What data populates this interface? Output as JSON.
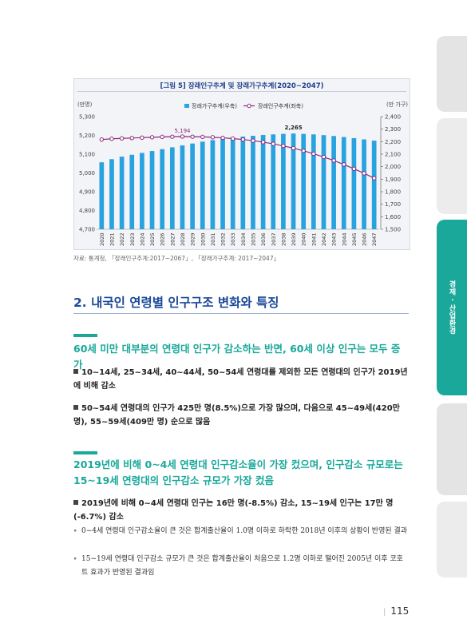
{
  "side_tab": {
    "label": "경제 · 산업환경"
  },
  "figure": {
    "title": "[그림 5] 장래인구추계 및 장래가구추계(2020~2047)",
    "source": "자료: 통계청, 「장래인구추계:2017~2067」, 「장래가구추계: 2017~2047」"
  },
  "chart_data": {
    "type": "bar",
    "left_unit": "(만명)",
    "right_unit": "(만 가구)",
    "legend": [
      "장래가구추계(우축)",
      "장래인구추계(좌축)"
    ],
    "categories": [
      "2020",
      "2021",
      "2022",
      "2023",
      "2024",
      "2025",
      "2026",
      "2027",
      "2028",
      "2029",
      "2030",
      "2031",
      "2032",
      "2033",
      "2034",
      "2035",
      "2036",
      "2037",
      "2038",
      "2039",
      "2040",
      "2041",
      "2042",
      "2043",
      "2044",
      "2045",
      "2046",
      "2047"
    ],
    "left_axis": {
      "min": 4700,
      "max": 5300,
      "ticks": [
        "4,700",
        "4,800",
        "4,900",
        "5,000",
        "5,100",
        "5,200",
        "5,300"
      ]
    },
    "right_axis": {
      "min": 1500,
      "max": 2400,
      "ticks": [
        "1,500",
        "1,600",
        "1,700",
        "1,800",
        "1,900",
        "2,000",
        "2,100",
        "2,200",
        "2,300",
        "2,400"
      ]
    },
    "series": [
      {
        "name": "장래가구추계(우축)",
        "axis": "right",
        "type": "bar",
        "color": "#29a3e0",
        "values": [
          2035,
          2060,
          2080,
          2095,
          2110,
          2125,
          2140,
          2155,
          2170,
          2185,
          2200,
          2212,
          2222,
          2232,
          2240,
          2247,
          2253,
          2258,
          2262,
          2265,
          2262,
          2258,
          2252,
          2245,
          2237,
          2228,
          2218,
          2208
        ]
      },
      {
        "name": "장래인구추계(좌축)",
        "axis": "left",
        "type": "line",
        "color": "#8a2b7c",
        "values": [
          5178,
          5182,
          5184,
          5186,
          5188,
          5190,
          5192,
          5193,
          5194,
          5193,
          5192,
          5190,
          5187,
          5183,
          5178,
          5172,
          5164,
          5155,
          5144,
          5132,
          5118,
          5102,
          5085,
          5066,
          5045,
          5022,
          4998,
          4972
        ]
      }
    ],
    "annotations": [
      {
        "text": "5,194",
        "series": 1,
        "index": 8
      },
      {
        "text": "2,265",
        "series": 0,
        "index": 19
      }
    ]
  },
  "section": {
    "title": "2. 내국인 연령별 인구구조 변화와 특징"
  },
  "block1": {
    "heading": "60세 미만 대부분의 연령대 인구가 감소하는 반면, 60세 이상 인구는 모두 증가",
    "bullets": [
      "10~14세, 25~34세, 40~44세, 50~54세 연령대를 제외한 모든 연령대의 인구가 2019년에 비해 감소",
      "50~54세 연령대의 인구가 425만 명(8.5%)으로 가장 많으며, 다음으로 45~49세(420만 명), 55~59세(409만 명) 순으로 많음"
    ]
  },
  "block2": {
    "heading": "2019년에 비해 0~4세 연령대 인구감소율이 가장 컸으며, 인구감소 규모로는 15~19세 연령대의 인구감소 규모가 가장 컸음",
    "bullet": "2019년에 비해 0~4세 연령대 인구는 16만 명(-8.5%) 감소, 15~19세 인구는 17만 명(-6.7%) 감소",
    "notes": [
      "0~4세 연령대 인구감소율이 큰 것은 합계출산율이 1.0명 이하로 하락한 2018년 이후의 상황이 반영된 결과",
      "15~19세 연령대 인구감소 규모가 큰 것은 합계출산율이 처음으로 1.2명 이하로 떨어진 2005년 이후 코호트 효과가 반영된 결과임"
    ],
    "note_marker": "∘"
  },
  "page_number": "115",
  "page_bar": "|"
}
